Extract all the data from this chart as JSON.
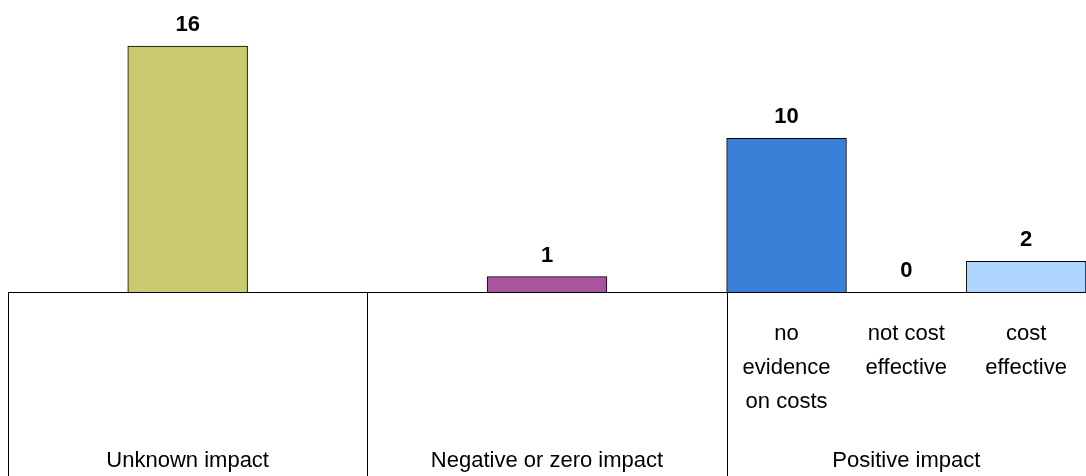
{
  "chart_data": {
    "type": "bar",
    "categories": [
      null,
      null,
      null,
      null,
      null,
      null,
      "no evidence on costs",
      "not cost effective",
      "cost effective"
    ],
    "values": [
      null,
      16,
      null,
      null,
      1,
      null,
      10,
      0,
      2
    ],
    "colors": [
      null,
      "#c9c96f",
      null,
      null,
      "#a8549e",
      null,
      "#3a80d8",
      "#8fbfff",
      "#aed6ff"
    ],
    "data_labels": true,
    "annotations": [
      "Unknown impact",
      "Negative or zero impact",
      "Positive impact"
    ]
  }
}
